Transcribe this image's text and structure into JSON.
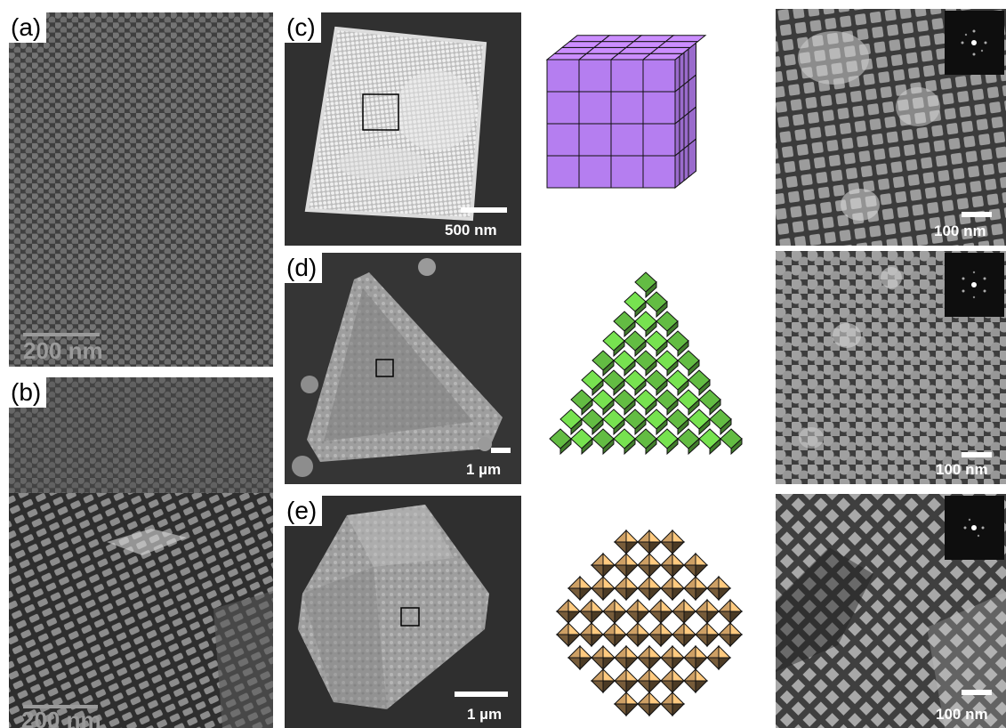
{
  "panels": {
    "a": {
      "label": "(a)",
      "scalebar": "200 nm"
    },
    "b": {
      "label": "(b)",
      "scalebar": "200 nm"
    },
    "c": {
      "label": "(c)",
      "scalebar_left": "500 nm",
      "scalebar_right": "100 nm",
      "model": "cube",
      "model_color": "#b57ef0"
    },
    "d": {
      "label": "(d)",
      "scalebar_left": "1 µm",
      "scalebar_right": "100 nm",
      "model": "tetrahedron",
      "model_color": "#6ed14a"
    },
    "e": {
      "label": "(e)",
      "scalebar_left": "1 µm",
      "scalebar_right": "100 nm",
      "model": "octahedron",
      "model_color": "#d9a86a"
    }
  }
}
